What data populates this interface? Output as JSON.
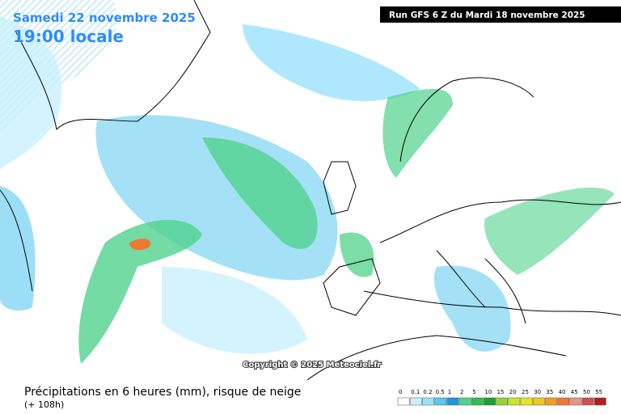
{
  "header": {
    "date": "Samedi 22 novembre 2025",
    "local_time": "19:00 locale",
    "run": "Run GFS 6 Z du Mardi 18 novembre 2025"
  },
  "copyright": "Copyright © 2025 Meteociel.fr",
  "footer": {
    "caption": "Précipitations en 6 heures (mm), risque de neige",
    "lead_time": "(+ 108h)"
  },
  "legend": {
    "labels": [
      0,
      0.1,
      0.2,
      0.5,
      1,
      2,
      5,
      10,
      15,
      20,
      25,
      30,
      35,
      40,
      45,
      50,
      55
    ],
    "colors": [
      "#ffffff",
      "#c8f0ff",
      "#9be1ff",
      "#5ac8f0",
      "#1e96dc",
      "#50d28c",
      "#32be50",
      "#1ea032",
      "#96d232",
      "#c8e628",
      "#e6e61e",
      "#f0c81e",
      "#f0a01e",
      "#f07832",
      "#e6967d",
      "#d25050",
      "#b41e1e"
    ]
  }
}
